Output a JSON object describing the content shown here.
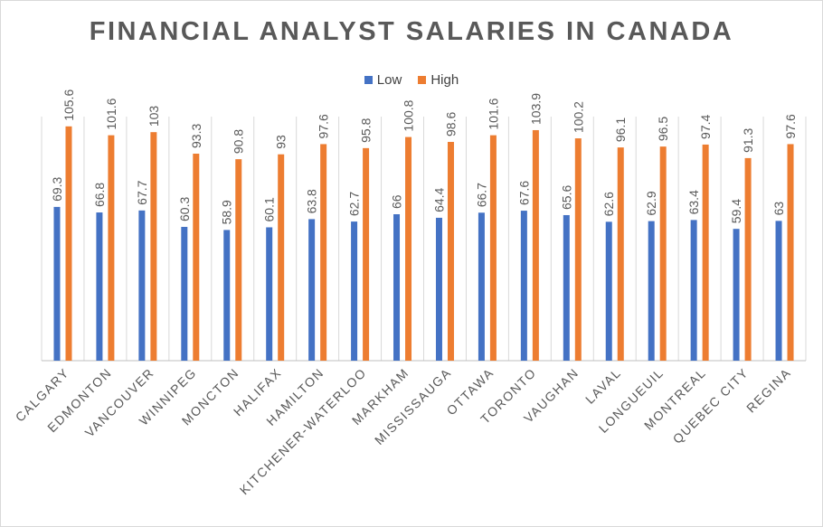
{
  "colors": {
    "low": "#4472C4",
    "high": "#ED7D31",
    "grid": "#d9d9d9",
    "axis": "#bfbfbf"
  },
  "chart_data": {
    "type": "bar",
    "title": "FINANCIAL ANALYST SALARIES IN CANADA",
    "xlabel": "",
    "ylabel": "",
    "ylim": [
      0,
      110
    ],
    "grid": "vertical category separators",
    "legend_position": "top",
    "categories": [
      "CALGARY",
      "EDMONTON",
      "VANCOUVER",
      "WINNIPEG",
      "MONCTON",
      "HALIFAX",
      "HAMILTON",
      "KITCHENER-WATERLOO",
      "MARKHAM",
      "MISSISSAUGA",
      "OTTAWA",
      "TORONTO",
      "VAUGHAN",
      "LAVAL",
      "LONGUEUIL",
      "MONTREAL",
      "QUEBEC CITY",
      "REGINA"
    ],
    "series": [
      {
        "name": "Low",
        "values": [
          69.3,
          66.8,
          67.7,
          60.3,
          58.9,
          60.1,
          63.8,
          62.7,
          66,
          64.4,
          66.7,
          67.6,
          65.6,
          62.6,
          62.9,
          63.4,
          59.4,
          63
        ]
      },
      {
        "name": "High",
        "values": [
          105.6,
          101.6,
          103,
          93.3,
          90.8,
          93,
          97.6,
          95.8,
          100.8,
          98.6,
          101.6,
          103.9,
          100.2,
          96.1,
          96.5,
          97.4,
          91.3,
          97.6
        ]
      }
    ]
  }
}
